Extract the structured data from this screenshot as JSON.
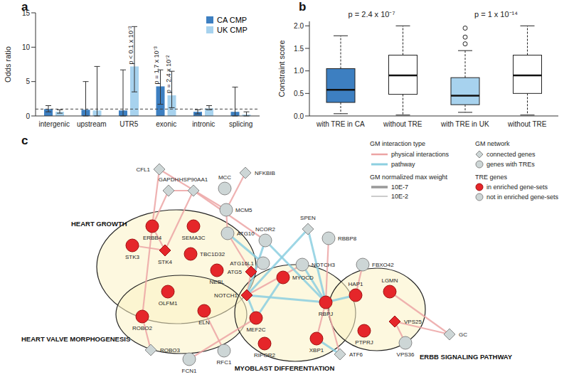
{
  "chart_data": [
    {
      "panel": "a",
      "type": "bar",
      "y_label": "Odds ratio",
      "categories": [
        "intergenic",
        "upstream",
        "UTR5",
        "exonic",
        "intronic",
        "splicing"
      ],
      "series": [
        {
          "name": "CA CMP",
          "color": "#3d7fc1",
          "values": [
            1.0,
            0.9,
            0.8,
            4.3,
            0.6,
            0.6
          ],
          "error_low": [
            0.6,
            0,
            0,
            1.7,
            0.3,
            0
          ],
          "error_high": [
            1.5,
            5.0,
            6.7,
            6.7,
            0.9,
            4.2
          ]
        },
        {
          "name": "UK CMP",
          "color": "#a7d2ee",
          "values": [
            0.6,
            0.8,
            7.2,
            3.0,
            1.1,
            0.2
          ],
          "error_low": [
            0.4,
            0,
            3.5,
            1.2,
            0.9,
            0
          ],
          "error_high": [
            0.9,
            7.2,
            13.0,
            6.5,
            1.5,
            0.6
          ]
        }
      ],
      "ylim": [
        0,
        15
      ],
      "yticks": [
        0,
        5,
        10,
        15
      ],
      "reference_line": 1,
      "legend": "top right",
      "annotations": [
        {
          "category": "UTR5",
          "series": "UK CMP",
          "text": "p < 0.1 x 10⁻³"
        },
        {
          "category": "exonic",
          "series": "CA CMP",
          "text": "p = 1.7 x 10⁻³"
        },
        {
          "category": "exonic",
          "series": "UK CMP",
          "text": "p = 2.4 x 10⁻²"
        }
      ]
    },
    {
      "panel": "b",
      "type": "boxplot",
      "y_label": "Constraint score",
      "categories": [
        "with TRE in CA",
        "without TRE",
        "with TRE in UK",
        "without TRE"
      ],
      "colors": [
        "#3d7fc1",
        "#ffffff",
        "#a7d2ee",
        "#ffffff"
      ],
      "boxes": [
        {
          "whisker_low": 0.05,
          "q1": 0.3,
          "median": 0.58,
          "q3": 1.05,
          "whisker_high": 1.78,
          "outliers": []
        },
        {
          "whisker_low": 0.02,
          "q1": 0.48,
          "median": 0.9,
          "q3": 1.35,
          "whisker_high": 2.0,
          "outliers": []
        },
        {
          "whisker_low": 0.08,
          "q1": 0.25,
          "median": 0.45,
          "q3": 0.85,
          "whisker_high": 1.45,
          "outliers": [
            1.6,
            1.75,
            1.95
          ]
        },
        {
          "whisker_low": 0.02,
          "q1": 0.5,
          "median": 0.9,
          "q3": 1.35,
          "whisker_high": 2.0,
          "outliers": []
        }
      ],
      "ylim": [
        0,
        2.1
      ],
      "yticks": [
        {
          "value": 0,
          "label": "0.0"
        },
        {
          "value": 0.5,
          "label": "0.5"
        },
        {
          "value": 1,
          "label": "1.0"
        },
        {
          "value": 1.5,
          "label": "1.5"
        },
        {
          "value": 2,
          "label": "2.0"
        }
      ],
      "annotations": [
        {
          "categories": [
            0,
            1
          ],
          "text": "p = 2.4 x 10⁻⁷"
        },
        {
          "categories": [
            2,
            3
          ],
          "text": "p = 1 x 10⁻¹⁴"
        }
      ]
    }
  ],
  "network": {
    "panel": "c",
    "legend": {
      "interaction_type": {
        "title": "GM interaction type",
        "items": [
          "physical interactions",
          "pathway"
        ]
      },
      "weight": {
        "title": "GM normalized max weight",
        "items": [
          "10E-7",
          "10E-2"
        ]
      },
      "network": {
        "title": "GM network",
        "items": [
          "connected genes",
          "genes with TREs"
        ]
      },
      "tre_genes": {
        "title": "TRE genes",
        "items": [
          "in enriched gene-sets",
          "not in enriched gene-sets"
        ]
      }
    },
    "clusters": [
      "HEART GROWTH",
      "HEART VALVE MORPHOGENESIS",
      "MYOBLAST DIFFERENTIATION",
      "ERBB SIGNALING PATHWAY"
    ],
    "nodes": [
      {
        "label": "CFL1",
        "group": "connected genes",
        "set": "not in enriched gene-sets"
      },
      {
        "label": "NFKBIB",
        "group": "connected genes",
        "set": "not in enriched gene-sets"
      },
      {
        "label": "MCC",
        "group": "genes with TREs",
        "set": "not in enriched gene-sets"
      },
      {
        "label": "GAPDH",
        "group": "connected genes",
        "set": "not in enriched gene-sets"
      },
      {
        "label": "HSP90AA1",
        "group": "connected genes",
        "set": "not in enriched gene-sets"
      },
      {
        "label": "MCM5",
        "group": "genes with TREs",
        "set": "not in enriched gene-sets"
      },
      {
        "label": "ATG10",
        "group": "genes with TREs",
        "set": "not in enriched gene-sets"
      },
      {
        "label": "NCOR2",
        "group": "genes with TREs",
        "set": "not in enriched gene-sets"
      },
      {
        "label": "SPEN",
        "group": "connected genes",
        "set": "not in enriched gene-sets"
      },
      {
        "label": "RBBP8",
        "group": "genes with TREs",
        "set": "not in enriched gene-sets"
      },
      {
        "label": "ATG16L1",
        "group": "genes with TREs",
        "set": "not in enriched gene-sets"
      },
      {
        "label": "NOTCH3",
        "group": "genes with TREs",
        "set": "not in enriched gene-sets"
      },
      {
        "label": "FBXO42",
        "group": "genes with TREs",
        "set": "not in enriched gene-sets"
      },
      {
        "label": "ERBB4",
        "group": "genes with TREs",
        "set": "in enriched gene-sets"
      },
      {
        "label": "SEMA3C",
        "group": "genes with TREs",
        "set": "in enriched gene-sets"
      },
      {
        "label": "STK3",
        "group": "genes with TREs",
        "set": "in enriched gene-sets"
      },
      {
        "label": "STK4",
        "group": "connected genes",
        "set": "in enriched gene-sets"
      },
      {
        "label": "TBC1D32",
        "group": "genes with TREs",
        "set": "in enriched gene-sets"
      },
      {
        "label": "NEBL",
        "group": "genes with TREs",
        "set": "in enriched gene-sets"
      },
      {
        "label": "ATG5",
        "group": "connected genes",
        "set": "in enriched gene-sets"
      },
      {
        "label": "MYOCD",
        "group": "genes with TREs",
        "set": "in enriched gene-sets"
      },
      {
        "label": "NOTCH1",
        "group": "connected genes",
        "set": "in enriched gene-sets"
      },
      {
        "label": "MEF2C",
        "group": "genes with TREs",
        "set": "in enriched gene-sets"
      },
      {
        "label": "RBPJ",
        "group": "genes with TREs",
        "set": "in enriched gene-sets"
      },
      {
        "label": "HAP1",
        "group": "genes with TREs",
        "set": "in enriched gene-sets"
      },
      {
        "label": "LGMN",
        "group": "genes with TREs",
        "set": "in enriched gene-sets"
      },
      {
        "label": "OLFM1",
        "group": "genes with TREs",
        "set": "in enriched gene-sets"
      },
      {
        "label": "ELN",
        "group": "genes with TREs",
        "set": "in enriched gene-sets"
      },
      {
        "label": "ROBO2",
        "group": "genes with TREs",
        "set": "in enriched gene-sets"
      },
      {
        "label": "PTPRJ",
        "group": "genes with TREs",
        "set": "in enriched gene-sets"
      },
      {
        "label": "VPS25",
        "group": "connected genes",
        "set": "in enriched gene-sets"
      },
      {
        "label": "VPS36",
        "group": "genes with TREs",
        "set": "not in enriched gene-sets"
      },
      {
        "label": "GC",
        "group": "connected genes",
        "set": "not in enriched gene-sets"
      },
      {
        "label": "RIPOR2",
        "group": "genes with TREs",
        "set": "in enriched gene-sets"
      },
      {
        "label": "XBP1",
        "group": "genes with TREs",
        "set": "in enriched gene-sets"
      },
      {
        "label": "ROBO3",
        "group": "connected genes",
        "set": "not in enriched gene-sets"
      },
      {
        "label": "RFC1",
        "group": "genes with TREs",
        "set": "not in enriched gene-sets"
      },
      {
        "label": "FCN1",
        "group": "genes with TREs",
        "set": "not in enriched gene-sets"
      },
      {
        "label": "ATF6",
        "group": "connected genes",
        "set": "not in enriched gene-sets"
      }
    ],
    "edges": [
      {
        "source": "CFL1",
        "target": "ERBB4",
        "type": "physical interactions"
      },
      {
        "source": "CFL1",
        "target": "MCM5",
        "type": "physical interactions"
      },
      {
        "source": "GAPDH",
        "target": "ERBB4",
        "type": "physical interactions"
      },
      {
        "source": "GAPDH",
        "target": "HSP90AA1",
        "type": "physical interactions"
      },
      {
        "source": "HSP90AA1",
        "target": "STK4",
        "type": "physical interactions"
      },
      {
        "source": "HSP90AA1",
        "target": "NCOR2",
        "type": "physical interactions"
      },
      {
        "source": "NFKBIB",
        "target": "MCM5",
        "type": "physical interactions"
      },
      {
        "source": "MCM5",
        "target": "ATG10",
        "type": "physical interactions"
      },
      {
        "source": "ATG10",
        "target": "ATG5",
        "type": "physical interactions"
      },
      {
        "source": "ATG16L1",
        "target": "ATG5",
        "type": "physical interactions"
      },
      {
        "source": "STK3",
        "target": "STK4",
        "type": "physical interactions"
      },
      {
        "source": "STK4",
        "target": "ERBB4",
        "type": "physical interactions"
      },
      {
        "source": "ERBB4",
        "target": "ROBO2",
        "type": "physical interactions"
      },
      {
        "source": "ROBO2",
        "target": "ROBO3",
        "type": "physical interactions"
      },
      {
        "source": "ELN",
        "target": "RFC1",
        "type": "physical interactions"
      },
      {
        "source": "ATG5",
        "target": "NOTCH1",
        "type": "physical interactions"
      },
      {
        "source": "NOTCH1",
        "target": "NOTCH3",
        "type": "physical interactions"
      },
      {
        "source": "RBBP8",
        "target": "RBPJ",
        "type": "physical interactions"
      },
      {
        "source": "FBXO42",
        "target": "HAP1",
        "type": "physical interactions"
      },
      {
        "source": "RBPJ",
        "target": "XBP1",
        "type": "physical interactions"
      },
      {
        "source": "RBPJ",
        "target": "ATF6",
        "type": "physical interactions"
      },
      {
        "source": "VPS25",
        "target": "VPS36",
        "type": "physical interactions"
      },
      {
        "source": "VPS25",
        "target": "GC",
        "type": "physical interactions"
      },
      {
        "source": "LGMN",
        "target": "GC",
        "type": "physical interactions"
      },
      {
        "source": "MEF2C",
        "target": "FCN1",
        "type": "physical interactions"
      },
      {
        "source": "NCOR2",
        "target": "NOTCH1",
        "type": "pathway"
      },
      {
        "source": "NCOR2",
        "target": "RBPJ",
        "type": "pathway"
      },
      {
        "source": "SPEN",
        "target": "RBPJ",
        "type": "pathway"
      },
      {
        "source": "SPEN",
        "target": "NOTCH1",
        "type": "pathway"
      },
      {
        "source": "NOTCH3",
        "target": "RBPJ",
        "type": "pathway"
      },
      {
        "source": "NOTCH1",
        "target": "RBPJ",
        "type": "pathway"
      },
      {
        "source": "MEF2C",
        "target": "NOTCH1",
        "type": "pathway"
      },
      {
        "source": "MYOCD",
        "target": "MEF2C",
        "type": "pathway"
      },
      {
        "source": "ATG16L1",
        "target": "ATG10",
        "type": "pathway"
      },
      {
        "source": "RBPJ",
        "target": "HAP1",
        "type": "pathway"
      },
      {
        "source": "XBP1",
        "target": "ATF6",
        "type": "pathway"
      }
    ]
  }
}
